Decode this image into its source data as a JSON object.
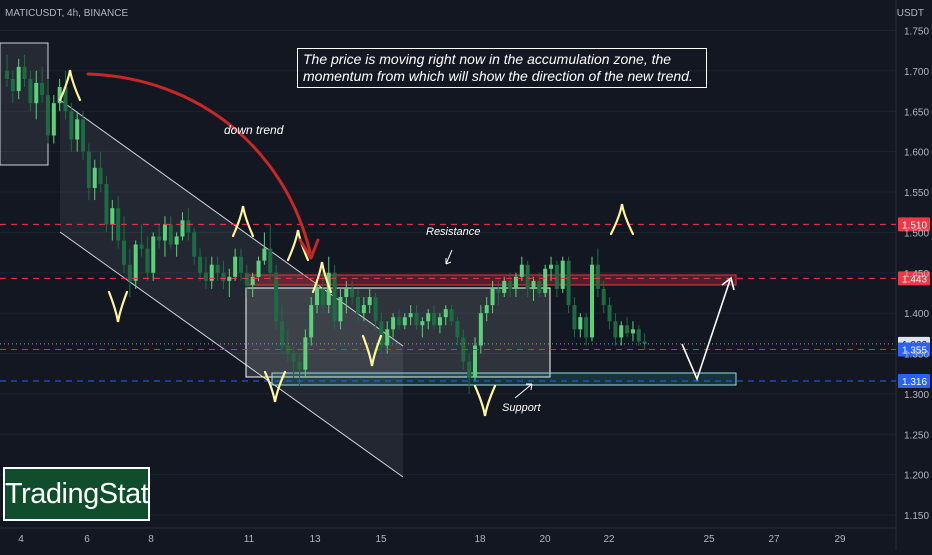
{
  "header": {
    "ticker": "MATICUSDT, 4h, BINANCE",
    "currency": "USDT"
  },
  "chart_data": {
    "type": "candlestick",
    "y_ticks": [
      1.75,
      1.7,
      1.65,
      1.6,
      1.55,
      1.5,
      1.45,
      1.4,
      1.35,
      1.3,
      1.25,
      1.2,
      1.15
    ],
    "y_tick_labels": [
      "1.750",
      "1.700",
      "1.650",
      "1.600",
      "1.550",
      "1.500",
      "1.450",
      "1.400",
      "1.350",
      "1.300",
      "1.250",
      "1.200",
      "1.150"
    ],
    "ylim": [
      1.142,
      1.78
    ],
    "x_ticks": [
      4,
      6,
      8,
      11,
      13,
      15,
      18,
      20,
      22,
      25,
      27,
      29
    ],
    "x_tick_labels": [
      "4",
      "6",
      "8",
      "11",
      "13",
      "15",
      "18",
      "20",
      "22",
      "25",
      "27",
      "29"
    ],
    "price_markers": [
      {
        "value": 1.51,
        "label": "1.510",
        "color": "#f23645",
        "style": "dashed"
      },
      {
        "value": 1.443,
        "label": "1.443",
        "color": "#f23645",
        "style": "dashed"
      },
      {
        "value": 1.362,
        "label": "1.362",
        "color": "#9598a1",
        "style": "dotted"
      },
      {
        "value": 1.355,
        "label": "1.355",
        "color": "#2962ff",
        "style": "dashed"
      },
      {
        "value": 1.316,
        "label": "1.316",
        "color": "#2962ff",
        "style": "dashed"
      }
    ],
    "candles": [
      [
        1.7,
        1.72,
        1.68,
        1.69
      ],
      [
        1.69,
        1.7,
        1.66,
        1.675
      ],
      [
        1.675,
        1.715,
        1.665,
        1.705
      ],
      [
        1.705,
        1.72,
        1.68,
        1.69
      ],
      [
        1.69,
        1.7,
        1.65,
        1.66
      ],
      [
        1.66,
        1.7,
        1.64,
        1.685
      ],
      [
        1.685,
        1.705,
        1.66,
        1.67
      ],
      [
        1.67,
        1.69,
        1.61,
        1.62
      ],
      [
        1.62,
        1.67,
        1.61,
        1.66
      ],
      [
        1.66,
        1.69,
        1.65,
        1.68
      ],
      [
        1.68,
        1.7,
        1.64,
        1.65
      ],
      [
        1.65,
        1.66,
        1.6,
        1.615
      ],
      [
        1.615,
        1.65,
        1.6,
        1.64
      ],
      [
        1.64,
        1.65,
        1.59,
        1.6
      ],
      [
        1.6,
        1.61,
        1.54,
        1.555
      ],
      [
        1.555,
        1.59,
        1.54,
        1.58
      ],
      [
        1.58,
        1.6,
        1.55,
        1.56
      ],
      [
        1.56,
        1.57,
        1.5,
        1.51
      ],
      [
        1.51,
        1.54,
        1.49,
        1.53
      ],
      [
        1.53,
        1.545,
        1.48,
        1.49
      ],
      [
        1.49,
        1.52,
        1.45,
        1.46
      ],
      [
        1.46,
        1.48,
        1.42,
        1.44
      ],
      [
        1.44,
        1.49,
        1.43,
        1.485
      ],
      [
        1.485,
        1.51,
        1.47,
        1.48
      ],
      [
        1.48,
        1.495,
        1.44,
        1.45
      ],
      [
        1.45,
        1.5,
        1.44,
        1.495
      ],
      [
        1.495,
        1.51,
        1.48,
        1.49
      ],
      [
        1.49,
        1.52,
        1.47,
        1.51
      ],
      [
        1.51,
        1.52,
        1.48,
        1.485
      ],
      [
        1.485,
        1.5,
        1.47,
        1.495
      ],
      [
        1.495,
        1.525,
        1.49,
        1.515
      ],
      [
        1.515,
        1.53,
        1.49,
        1.5
      ],
      [
        1.5,
        1.505,
        1.46,
        1.47
      ],
      [
        1.47,
        1.48,
        1.44,
        1.45
      ],
      [
        1.45,
        1.47,
        1.43,
        1.44
      ],
      [
        1.44,
        1.47,
        1.43,
        1.46
      ],
      [
        1.46,
        1.47,
        1.44,
        1.45
      ],
      [
        1.45,
        1.465,
        1.43,
        1.44
      ],
      [
        1.44,
        1.455,
        1.42,
        1.445
      ],
      [
        1.445,
        1.48,
        1.44,
        1.47
      ],
      [
        1.47,
        1.48,
        1.44,
        1.45
      ],
      [
        1.45,
        1.46,
        1.42,
        1.435
      ],
      [
        1.435,
        1.45,
        1.42,
        1.445
      ],
      [
        1.445,
        1.47,
        1.44,
        1.465
      ],
      [
        1.465,
        1.5,
        1.46,
        1.48
      ],
      [
        1.48,
        1.51,
        1.44,
        1.45
      ],
      [
        1.45,
        1.46,
        1.38,
        1.39
      ],
      [
        1.39,
        1.41,
        1.35,
        1.36
      ],
      [
        1.36,
        1.38,
        1.34,
        1.35
      ],
      [
        1.35,
        1.36,
        1.32,
        1.34
      ],
      [
        1.34,
        1.35,
        1.31,
        1.33
      ],
      [
        1.33,
        1.38,
        1.32,
        1.37
      ],
      [
        1.37,
        1.42,
        1.36,
        1.41
      ],
      [
        1.41,
        1.44,
        1.4,
        1.43
      ],
      [
        1.43,
        1.46,
        1.4,
        1.41
      ],
      [
        1.41,
        1.47,
        1.4,
        1.45
      ],
      [
        1.45,
        1.46,
        1.38,
        1.39
      ],
      [
        1.39,
        1.43,
        1.38,
        1.42
      ],
      [
        1.42,
        1.44,
        1.4,
        1.43
      ],
      [
        1.43,
        1.44,
        1.41,
        1.42
      ],
      [
        1.42,
        1.43,
        1.39,
        1.4
      ],
      [
        1.4,
        1.42,
        1.39,
        1.41
      ],
      [
        1.41,
        1.43,
        1.4,
        1.42
      ],
      [
        1.42,
        1.425,
        1.38,
        1.39
      ],
      [
        1.39,
        1.4,
        1.35,
        1.36
      ],
      [
        1.36,
        1.39,
        1.35,
        1.38
      ],
      [
        1.38,
        1.4,
        1.37,
        1.395
      ],
      [
        1.395,
        1.405,
        1.38,
        1.385
      ],
      [
        1.385,
        1.4,
        1.38,
        1.395
      ],
      [
        1.395,
        1.41,
        1.385,
        1.4
      ],
      [
        1.4,
        1.41,
        1.38,
        1.385
      ],
      [
        1.385,
        1.395,
        1.37,
        1.39
      ],
      [
        1.39,
        1.405,
        1.38,
        1.4
      ],
      [
        1.4,
        1.41,
        1.38,
        1.385
      ],
      [
        1.385,
        1.4,
        1.375,
        1.395
      ],
      [
        1.395,
        1.41,
        1.385,
        1.405
      ],
      [
        1.405,
        1.41,
        1.385,
        1.39
      ],
      [
        1.39,
        1.395,
        1.36,
        1.37
      ],
      [
        1.37,
        1.38,
        1.33,
        1.34
      ],
      [
        1.34,
        1.35,
        1.3,
        1.32
      ],
      [
        1.32,
        1.37,
        1.315,
        1.36
      ],
      [
        1.36,
        1.41,
        1.35,
        1.4
      ],
      [
        1.4,
        1.42,
        1.39,
        1.41
      ],
      [
        1.41,
        1.44,
        1.4,
        1.43
      ],
      [
        1.43,
        1.44,
        1.41,
        1.425
      ],
      [
        1.425,
        1.445,
        1.42,
        1.44
      ],
      [
        1.44,
        1.45,
        1.42,
        1.43
      ],
      [
        1.43,
        1.45,
        1.42,
        1.445
      ],
      [
        1.445,
        1.47,
        1.44,
        1.46
      ],
      [
        1.46,
        1.465,
        1.42,
        1.43
      ],
      [
        1.43,
        1.445,
        1.415,
        1.44
      ],
      [
        1.44,
        1.45,
        1.42,
        1.425
      ],
      [
        1.425,
        1.46,
        1.42,
        1.455
      ],
      [
        1.455,
        1.47,
        1.44,
        1.46
      ],
      [
        1.46,
        1.465,
        1.42,
        1.43
      ],
      [
        1.43,
        1.47,
        1.425,
        1.465
      ],
      [
        1.465,
        1.47,
        1.4,
        1.41
      ],
      [
        1.41,
        1.42,
        1.37,
        1.38
      ],
      [
        1.38,
        1.4,
        1.37,
        1.395
      ],
      [
        1.395,
        1.4,
        1.36,
        1.37
      ],
      [
        1.37,
        1.47,
        1.365,
        1.46
      ],
      [
        1.46,
        1.48,
        1.42,
        1.43
      ],
      [
        1.43,
        1.44,
        1.4,
        1.41
      ],
      [
        1.41,
        1.42,
        1.38,
        1.39
      ],
      [
        1.39,
        1.4,
        1.36,
        1.37
      ],
      [
        1.37,
        1.39,
        1.36,
        1.385
      ],
      [
        1.385,
        1.395,
        1.37,
        1.375
      ],
      [
        1.375,
        1.39,
        1.365,
        1.38
      ],
      [
        1.38,
        1.385,
        1.36,
        1.365
      ],
      [
        1.365,
        1.375,
        1.355,
        1.362
      ]
    ]
  },
  "annotations": {
    "callout": "The price is moving right now in the accumulation zone, the momentum from which will show the direction of the new trend.",
    "down_trend": "down trend",
    "resistance": "Resistance",
    "support": "Support"
  },
  "brand": {
    "logo_text": "TradingStat"
  },
  "colors": {
    "background": "#131722",
    "bull": "#26a69a",
    "bear": "#ef5350",
    "candle_bull": "#5ad17a",
    "candle_bear": "#1e6b43",
    "resistance": "#f23645",
    "support": "#2962ff",
    "pivot": "#fff59d",
    "arrow": "#c62828"
  }
}
